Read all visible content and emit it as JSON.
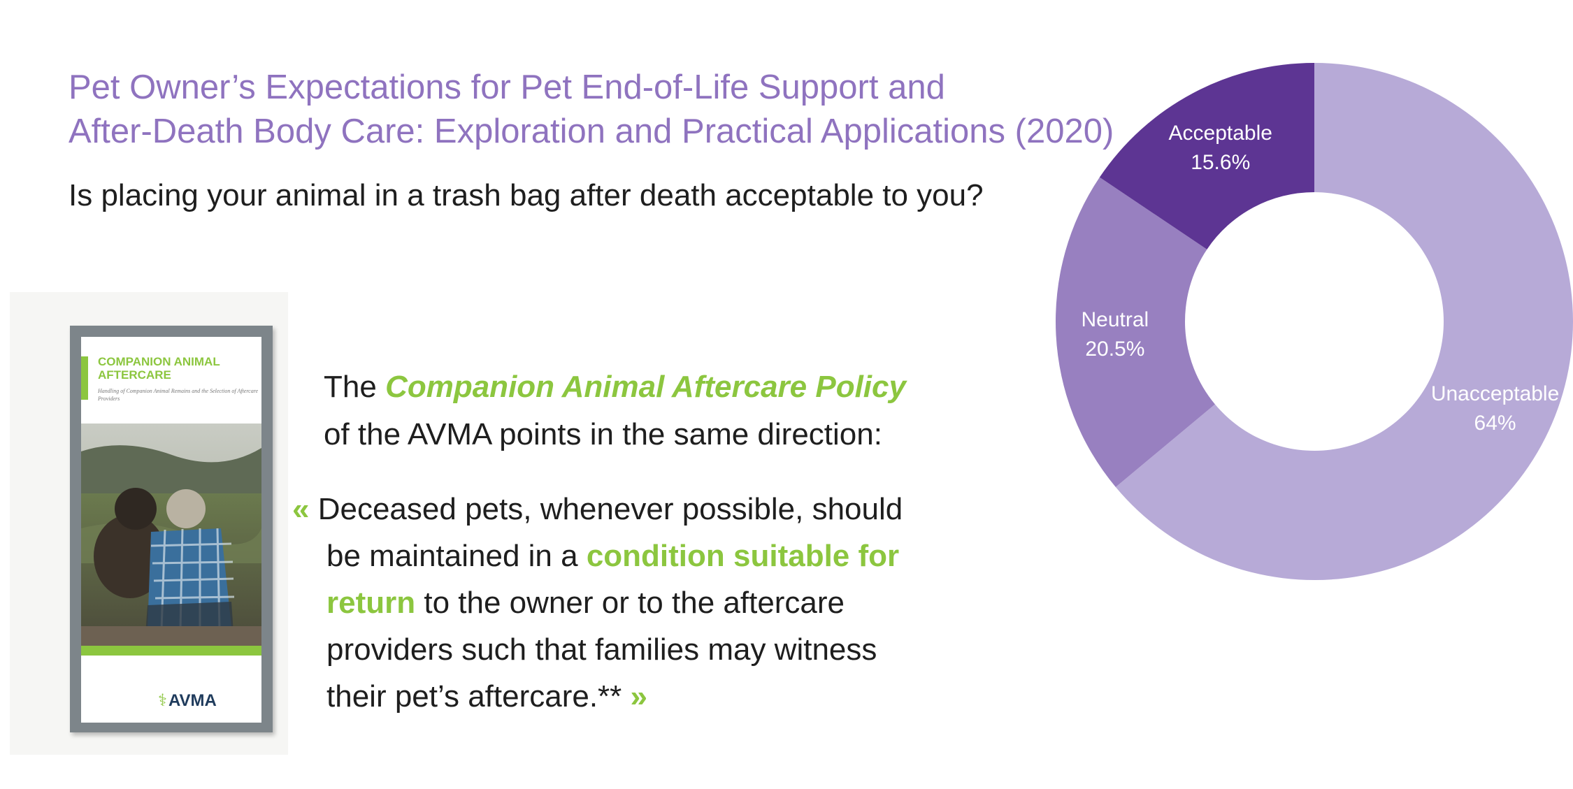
{
  "slide": {
    "title_line1": "Pet Owner’s Expectations for Pet End-of-Life Support and",
    "title_line2": "After-Death Body Care: Exploration and Practical Applications (2020)",
    "question": "Is placing your animal in a trash bag after death acceptable to you?",
    "lead_prefix": "The",
    "lead_policy": "Companion Animal Aftercare Policy",
    "lead_line2": "of the AVMA points in the same direction:",
    "quote": {
      "open_mark": "«",
      "l1": "Deceased pets, whenever possible, should",
      "l2_pre": "be maintained in a",
      "l2_hl": "condition suitable for",
      "l3_hl": "return",
      "l3_post": "to the owner or to the aftercare",
      "l4": "providers such that families may witness",
      "l5": "their pet’s aftercare.**",
      "close_mark": "»"
    },
    "brochure": {
      "title_line1": "COMPANION ANIMAL",
      "title_line2": "AFTERCARE",
      "subtitle": "Handling of Companion Animal Remains and the Selection of Aftercare Providers",
      "logo": "AVMA",
      "green": "#8cc63f"
    }
  },
  "chart_data": {
    "type": "pie",
    "donut": true,
    "title": "",
    "slices": [
      {
        "label": "Unacceptable",
        "value_text": "64%",
        "value": 64,
        "color": "#b7aad7"
      },
      {
        "label": "Neutral",
        "value_text": "20.5%",
        "value": 20.5,
        "color": "#9880c0"
      },
      {
        "label": "Acceptable",
        "value_text": "15.6%",
        "value": 15.6,
        "color": "#5d3593"
      }
    ],
    "start_angle": "12 o'clock",
    "direction": "clockwise",
    "label_color": "#ffffff"
  }
}
